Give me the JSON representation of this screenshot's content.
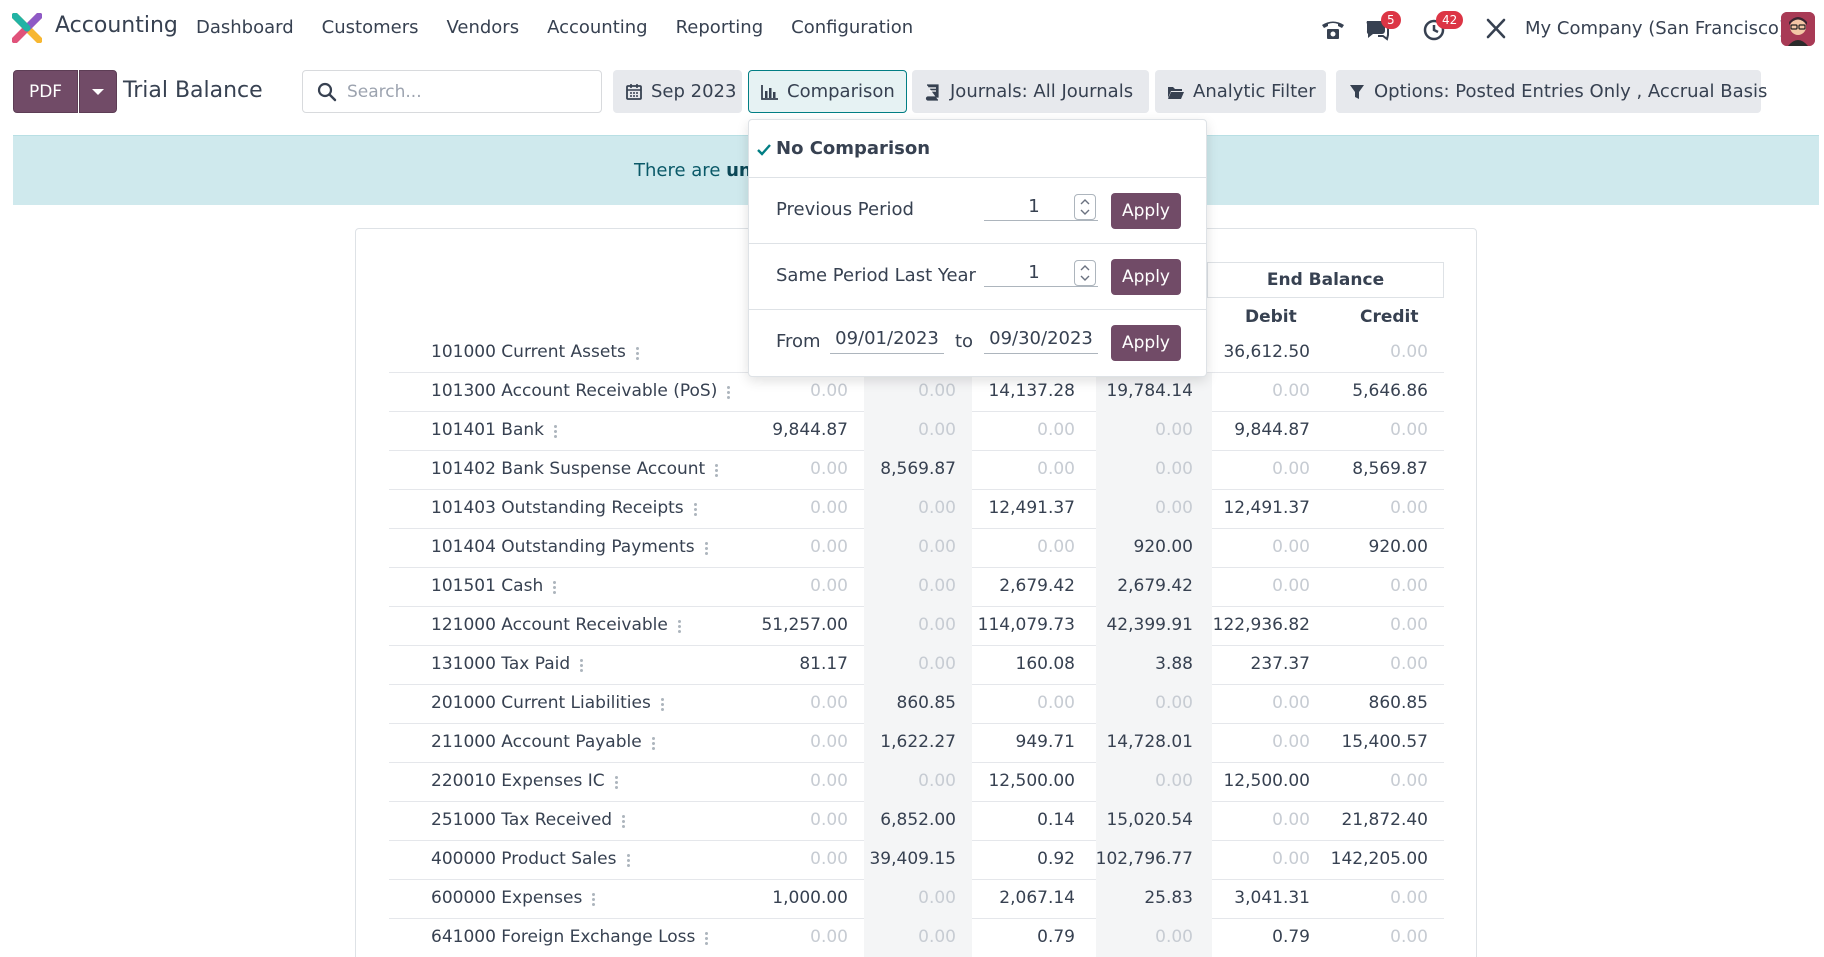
{
  "nav": {
    "app_name": "Accounting",
    "menu": [
      "Dashboard",
      "Customers",
      "Vendors",
      "Accounting",
      "Reporting",
      "Configuration"
    ],
    "messages_badge": "5",
    "activity_badge": "42",
    "company": "My Company (San Francisco)"
  },
  "control": {
    "pdf_label": "PDF",
    "title": "Trial Balance",
    "search_placeholder": "Search...",
    "date_filter": "Sep 2023",
    "comparison": "Comparison",
    "journals": "Journals: All Journals",
    "analytic": "Analytic Filter",
    "options": "Options: Posted Entries Only , Accrual Basis"
  },
  "banner": {
    "text_start": "There are ",
    "text_bold": "unp"
  },
  "comparison_menu": {
    "no_comparison": "No Comparison",
    "previous_period": "Previous Period",
    "previous_period_value": "1",
    "same_period": "Same Period Last Year",
    "same_period_value": "1",
    "from_label": "From",
    "from_date": "09/01/2023",
    "to_label": "to",
    "to_date": "09/30/2023",
    "apply": "Apply"
  },
  "report": {
    "end_balance": "End Balance",
    "debit": "Debit",
    "credit": "Credit",
    "rows": [
      {
        "label": "101000 Current Assets",
        "c": [
          "",
          "",
          "",
          "",
          "36,612.50",
          "0.00"
        ]
      },
      {
        "label": "101300 Account Receivable (PoS)",
        "c": [
          "0.00",
          "0.00",
          "14,137.28",
          "19,784.14",
          "0.00",
          "5,646.86"
        ]
      },
      {
        "label": "101401 Bank",
        "c": [
          "9,844.87",
          "0.00",
          "0.00",
          "0.00",
          "9,844.87",
          "0.00"
        ]
      },
      {
        "label": "101402 Bank Suspense Account",
        "c": [
          "0.00",
          "8,569.87",
          "0.00",
          "0.00",
          "0.00",
          "8,569.87"
        ]
      },
      {
        "label": "101403 Outstanding Receipts",
        "c": [
          "0.00",
          "0.00",
          "12,491.37",
          "0.00",
          "12,491.37",
          "0.00"
        ]
      },
      {
        "label": "101404 Outstanding Payments",
        "c": [
          "0.00",
          "0.00",
          "0.00",
          "920.00",
          "0.00",
          "920.00"
        ]
      },
      {
        "label": "101501 Cash",
        "c": [
          "0.00",
          "0.00",
          "2,679.42",
          "2,679.42",
          "0.00",
          "0.00"
        ]
      },
      {
        "label": "121000 Account Receivable",
        "c": [
          "51,257.00",
          "0.00",
          "114,079.73",
          "42,399.91",
          "122,936.82",
          "0.00"
        ]
      },
      {
        "label": "131000 Tax Paid",
        "c": [
          "81.17",
          "0.00",
          "160.08",
          "3.88",
          "237.37",
          "0.00"
        ]
      },
      {
        "label": "201000 Current Liabilities",
        "c": [
          "0.00",
          "860.85",
          "0.00",
          "0.00",
          "0.00",
          "860.85"
        ]
      },
      {
        "label": "211000 Account Payable",
        "c": [
          "0.00",
          "1,622.27",
          "949.71",
          "14,728.01",
          "0.00",
          "15,400.57"
        ]
      },
      {
        "label": "220010 Expenses IC",
        "c": [
          "0.00",
          "0.00",
          "12,500.00",
          "0.00",
          "12,500.00",
          "0.00"
        ]
      },
      {
        "label": "251000 Tax Received",
        "c": [
          "0.00",
          "6,852.00",
          "0.14",
          "15,020.54",
          "0.00",
          "21,872.40"
        ]
      },
      {
        "label": "400000 Product Sales",
        "c": [
          "0.00",
          "39,409.15",
          "0.92",
          "102,796.77",
          "0.00",
          "142,205.00"
        ]
      },
      {
        "label": "600000 Expenses",
        "c": [
          "1,000.00",
          "0.00",
          "2,067.14",
          "25.83",
          "3,041.31",
          "0.00"
        ]
      },
      {
        "label": "641000 Foreign Exchange Loss",
        "c": [
          "0.00",
          "0.00",
          "0.79",
          "0.00",
          "0.79",
          "0.00"
        ]
      }
    ]
  },
  "colors": {
    "primary": "#714b67",
    "teal": "#017e84",
    "banner": "#cfe9ed"
  }
}
